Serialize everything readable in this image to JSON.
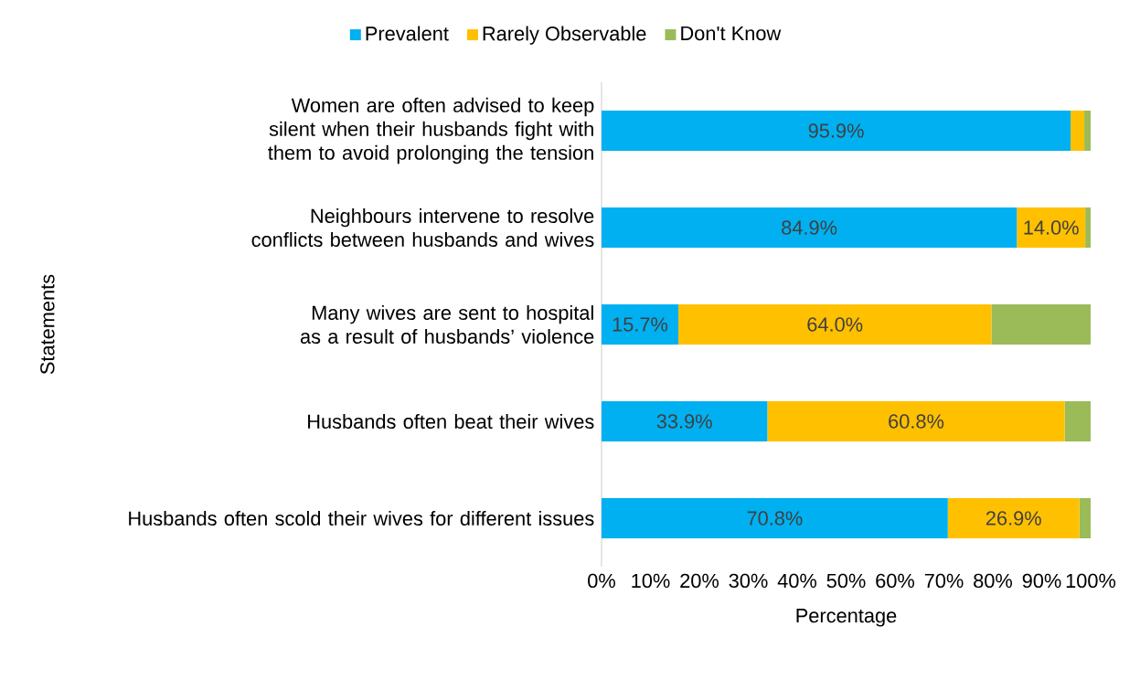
{
  "chart_data": {
    "type": "bar",
    "orientation": "horizontal",
    "stacked": true,
    "xlabel": "Percentage",
    "ylabel": "Statements",
    "categories": [
      "Women are often advised to keep silent when their husbands fight with them to avoid prolonging the tension",
      "Neighbours intervene to resolve conflicts between husbands and wives",
      "Many wives are sent to hospital as a result of husbands’ violence",
      "Husbands often beat their wives",
      "Husbands often scold their wives for different issues"
    ],
    "series": [
      {
        "name": "Prevalent",
        "color": "#00b0f0",
        "values": [
          95.9,
          84.9,
          15.7,
          33.9,
          70.8
        ],
        "value_labels": [
          "95.9%",
          "84.9%",
          "15.7%",
          "33.9%",
          "70.8%"
        ]
      },
      {
        "name": "Rarely Observable",
        "color": "#ffc000",
        "values": [
          2.8,
          14.0,
          64.0,
          60.8,
          26.9
        ],
        "value_labels": [
          null,
          "14.0%",
          "64.0%",
          "60.8%",
          "26.9%"
        ]
      },
      {
        "name": "Don't Know",
        "color": "#9bbb59",
        "values": [
          1.3,
          1.1,
          20.3,
          5.3,
          2.3
        ]
      }
    ],
    "xlim": [
      0,
      100
    ],
    "xticks": [
      {
        "value": 0,
        "label": "0%"
      },
      {
        "value": 10,
        "label": "10%"
      },
      {
        "value": 20,
        "label": "20%"
      },
      {
        "value": 30,
        "label": "30%"
      },
      {
        "value": 40,
        "label": "40%"
      },
      {
        "value": 50,
        "label": "50%"
      },
      {
        "value": 60,
        "label": "60%"
      },
      {
        "value": 70,
        "label": "70%"
      },
      {
        "value": 80,
        "label": "80%"
      },
      {
        "value": 90,
        "label": "90%"
      },
      {
        "value": 100,
        "label": "100%"
      }
    ],
    "legend": "top",
    "grid": false
  }
}
